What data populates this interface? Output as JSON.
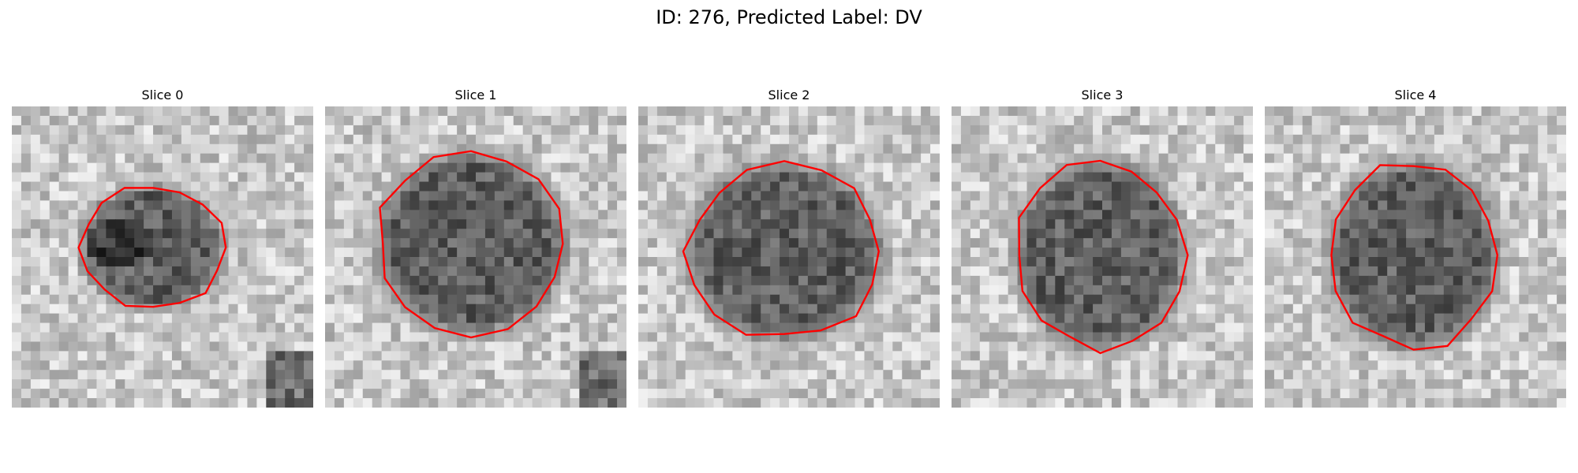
{
  "figure": {
    "title": "ID: 276, Predicted Label: DV"
  },
  "panels": [
    {
      "title": "Slice 0"
    },
    {
      "title": "Slice 1"
    },
    {
      "title": "Slice 2"
    },
    {
      "title": "Slice 3"
    },
    {
      "title": "Slice 4"
    }
  ],
  "colors": {
    "contour": "#ff0000",
    "background": "#ffffff"
  },
  "image": {
    "colormap": "grayscale",
    "grid_cells": 32
  }
}
